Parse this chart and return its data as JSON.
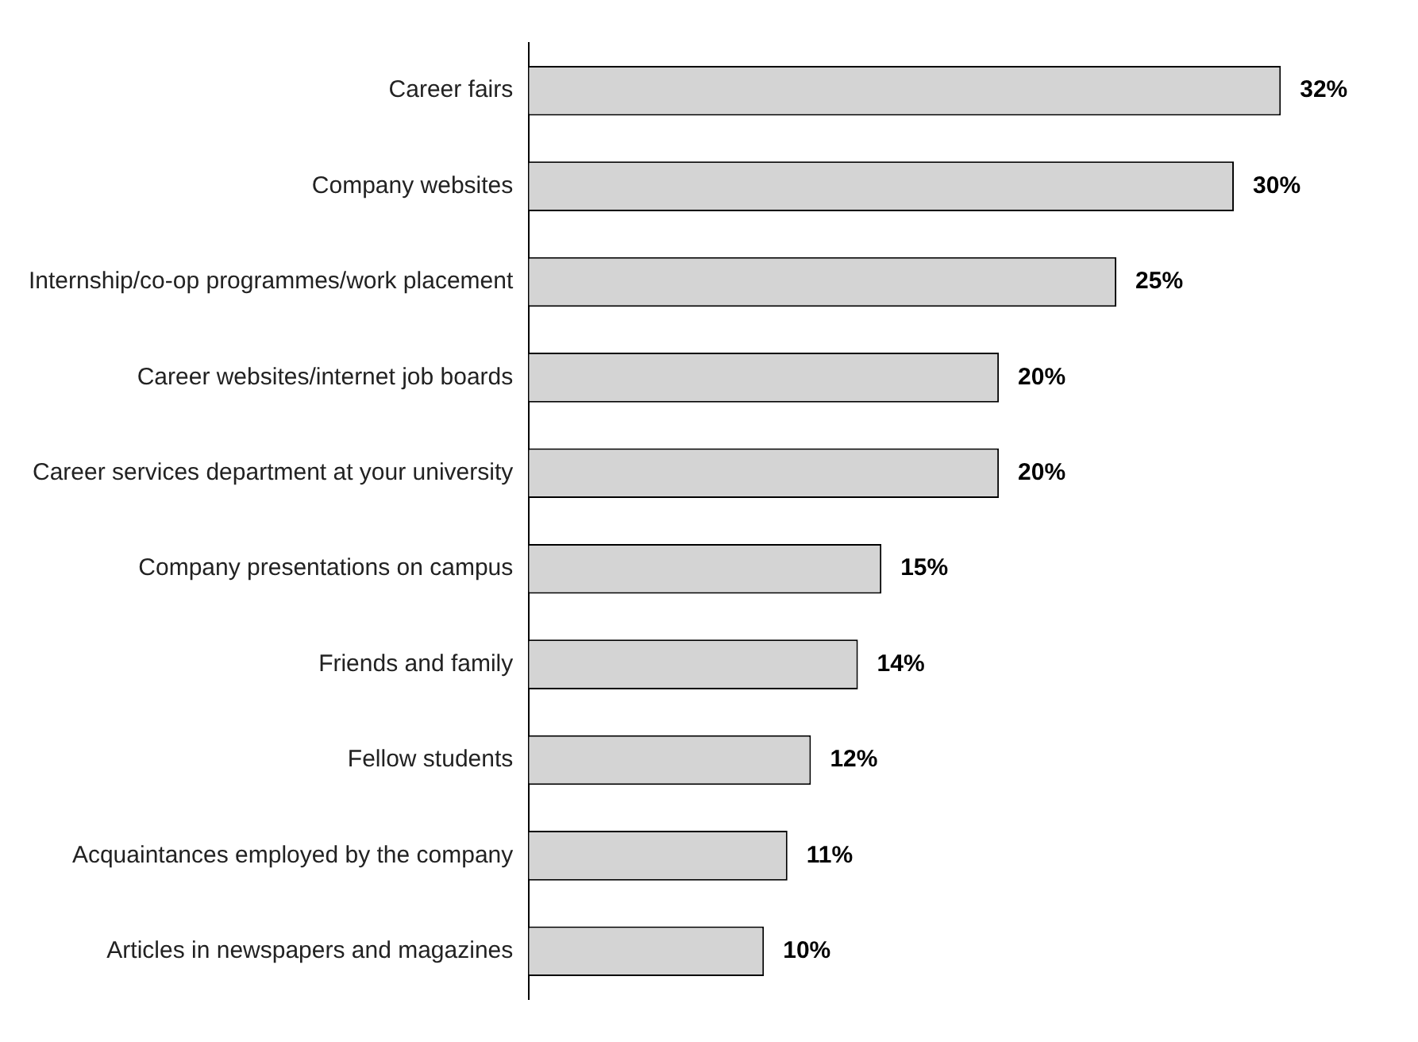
{
  "chart_data": {
    "type": "bar",
    "orientation": "horizontal",
    "categories": [
      "Career fairs",
      "Company websites",
      "Internship/co-op programmes/work placement",
      "Career websites/internet job boards",
      "Career services department at your university",
      "Company presentations on campus",
      "Friends and family",
      "Fellow students",
      "Acquaintances employed by the company",
      "Articles in newspapers and magazines"
    ],
    "values": [
      32,
      30,
      25,
      20,
      20,
      15,
      14,
      12,
      11,
      10
    ],
    "value_labels": [
      "32%",
      "30%",
      "25%",
      "20%",
      "20%",
      "15%",
      "14%",
      "12%",
      "11%",
      "10%"
    ],
    "color": "#d4d4d4"
  }
}
